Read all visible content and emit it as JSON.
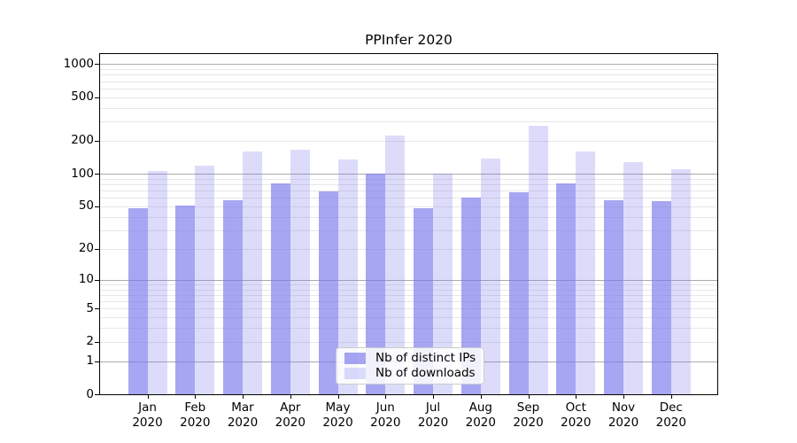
{
  "chart_data": {
    "type": "bar",
    "title": "PPInfer 2020",
    "scale": "log1p",
    "grid": true,
    "legend_position": "bottom-center",
    "categories": [
      "Jan",
      "Feb",
      "Mar",
      "Apr",
      "May",
      "Jun",
      "Jul",
      "Aug",
      "Sep",
      "Oct",
      "Nov",
      "Dec"
    ],
    "year_label": "2020",
    "series": [
      {
        "name": "Nb of distinct IPs",
        "color": "rgba(120,120,235,0.66)",
        "values": [
          48,
          51,
          57,
          81,
          69,
          100,
          48,
          60,
          67,
          81,
          57,
          56
        ]
      },
      {
        "name": "Nb of downloads",
        "color": "rgba(120,120,235,0.26)",
        "values": [
          106,
          119,
          160,
          166,
          135,
          223,
          100,
          138,
          275,
          160,
          127,
          110
        ]
      }
    ],
    "y_axis": {
      "ticks": [
        0,
        1,
        2,
        5,
        10,
        20,
        50,
        100,
        200,
        500,
        1000
      ],
      "labels": [
        "0",
        "1",
        "2",
        "5",
        "10",
        "20",
        "50",
        "100",
        "200",
        "500",
        "1000"
      ]
    },
    "ylim": [
      0,
      1235
    ],
    "colors": {
      "grid_major": "#ababab",
      "grid_minor": "#e7e7e7",
      "axis": "#000000",
      "background": "#ffffff"
    }
  }
}
